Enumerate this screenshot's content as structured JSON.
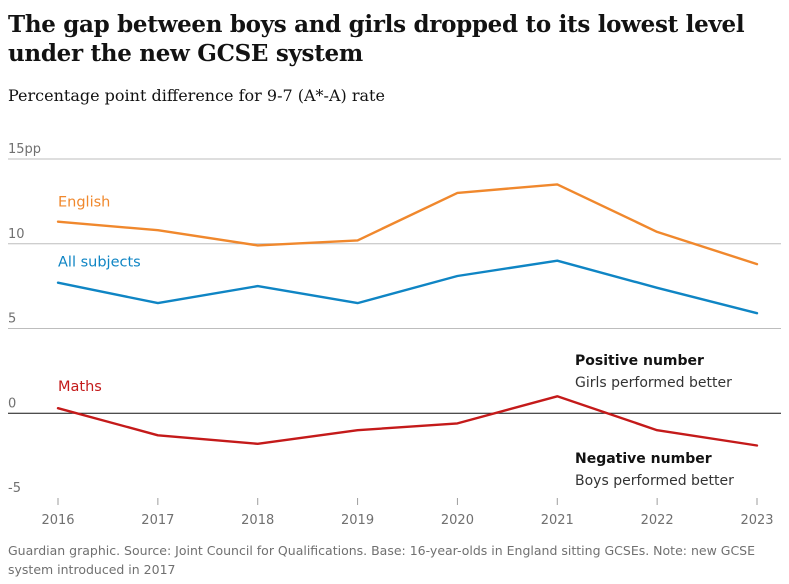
{
  "header": {
    "title": "The gap between boys and girls dropped to its lowest level under the new GCSE system",
    "subtitle": "Percentage point difference for 9-7 (A*-A) rate"
  },
  "footer": {
    "note": "Guardian graphic. Source: Joint Council for Qualifications. Base: 16-year-olds in England sitting GCSEs. Note: new GCSE system introduced in 2017"
  },
  "chart_data": {
    "type": "line",
    "title": "The gap between boys and girls dropped to its lowest level under the new GCSE system",
    "subtitle": "Percentage point difference for 9-7 (A*-A) rate",
    "xlabel": "",
    "ylabel": "",
    "x": [
      2016,
      2017,
      2018,
      2019,
      2020,
      2021,
      2022,
      2023
    ],
    "x_tick_labels": [
      "2016",
      "2017",
      "2018",
      "2019",
      "2020",
      "2021",
      "2022",
      "2023"
    ],
    "ylim": [
      -5,
      15
    ],
    "y_ticks": [
      15,
      10,
      5,
      0,
      -5
    ],
    "y_tick_labels": [
      "15pp",
      "10",
      "5",
      "0",
      "-5"
    ],
    "grid": true,
    "series": [
      {
        "name": "English",
        "color": "#f0882d",
        "values": [
          11.3,
          10.8,
          9.9,
          10.2,
          13.0,
          13.5,
          10.7,
          8.8
        ]
      },
      {
        "name": "All subjects",
        "color": "#0f85c4",
        "values": [
          7.7,
          6.5,
          7.5,
          6.5,
          8.1,
          9.0,
          7.4,
          5.9
        ]
      },
      {
        "name": "Maths",
        "color": "#c41a1a",
        "values": [
          0.3,
          -1.3,
          -1.8,
          -1.0,
          -0.6,
          1.0,
          -1.0,
          -1.9
        ]
      }
    ],
    "annotations": {
      "positive_title": "Positive number",
      "positive_text": "Girls performed better",
      "negative_title": "Negative number",
      "negative_text": "Boys performed better"
    }
  }
}
